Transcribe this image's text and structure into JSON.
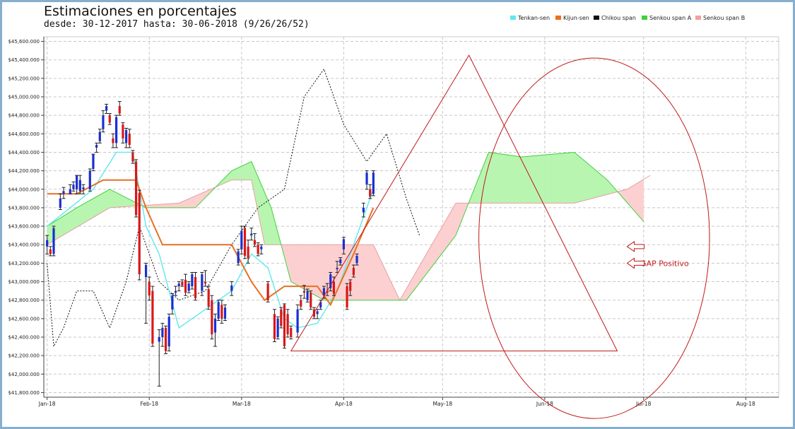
{
  "chart_data": {
    "type": "candlestick",
    "title": "Estimaciones en porcentajes",
    "subtitle": "desde: 30-12-2017 hasta: 30-06-2018 (9/26/26/52)",
    "y_unit_prefix": "$",
    "ylim": [
      41750,
      45650
    ],
    "y_ticks": [
      41800,
      42000,
      42200,
      42400,
      42600,
      42800,
      43000,
      43200,
      43400,
      43600,
      43800,
      44000,
      44200,
      44400,
      44600,
      44800,
      45000,
      45200,
      45400,
      45600
    ],
    "y_tick_labels": [
      "$41,800.000",
      "$42,000.000",
      "$42,200.000",
      "$42,400.000",
      "$42,600.000",
      "$42,800.000",
      "$43,000.000",
      "$43,200.000",
      "$43,400.000",
      "$43,600.000",
      "$43,800.000",
      "$44,000.000",
      "$44,200.000",
      "$44,400.000",
      "$44,600.000",
      "$44,800.000",
      "$45,000.000",
      "$45,200.000",
      "$45,400.000",
      "$45,600.000"
    ],
    "xlim": [
      "2017-12-31",
      "2018-08-11"
    ],
    "x_ticks": [
      {
        "date": "2018-01-01",
        "label": "Jan-18"
      },
      {
        "date": "2018-02-01",
        "label": "Feb-18"
      },
      {
        "date": "2018-03-01",
        "label": "Mar-18"
      },
      {
        "date": "2018-04-01",
        "label": "Apr-18"
      },
      {
        "date": "2018-05-01",
        "label": "May-18"
      },
      {
        "date": "2018-06-01",
        "label": "Jun-18"
      },
      {
        "date": "2018-07-01",
        "label": "Jul-18"
      },
      {
        "date": "2018-08-01",
        "label": "Aug-18"
      }
    ],
    "grid": true,
    "legend_position": "top-right",
    "legend": [
      {
        "name": "Tenkan-sen",
        "color": "#5ee8f0"
      },
      {
        "name": "Kijun-sen",
        "color": "#e87020"
      },
      {
        "name": "Chikou span",
        "color": "#111111"
      },
      {
        "name": "Senkou span A",
        "color": "#40d040"
      },
      {
        "name": "Senkou span B",
        "color": "#f2a0a0"
      }
    ],
    "candles": [
      {
        "date": "2018-01-01",
        "open": 43380,
        "high": 43500,
        "low": 43300,
        "close": 43450
      },
      {
        "date": "2018-01-02",
        "open": 43350,
        "high": 43380,
        "low": 43280,
        "close": 43300
      },
      {
        "date": "2018-01-03",
        "open": 43300,
        "high": 43600,
        "low": 43280,
        "close": 43580
      },
      {
        "date": "2018-01-05",
        "open": 43800,
        "high": 43950,
        "low": 43780,
        "close": 43900
      },
      {
        "date": "2018-01-06",
        "open": 43950,
        "high": 44020,
        "low": 43900,
        "close": 43980
      },
      {
        "date": "2018-01-08",
        "open": 43950,
        "high": 44050,
        "low": 43950,
        "close": 44000
      },
      {
        "date": "2018-01-09",
        "open": 44000,
        "high": 44080,
        "low": 43980,
        "close": 44050
      },
      {
        "date": "2018-01-10",
        "open": 44000,
        "high": 44150,
        "low": 43950,
        "close": 44150
      },
      {
        "date": "2018-01-11",
        "open": 43980,
        "high": 44150,
        "low": 43950,
        "close": 44100
      },
      {
        "date": "2018-01-12",
        "open": 44000,
        "high": 44050,
        "low": 43950,
        "close": 44020
      },
      {
        "date": "2018-01-14",
        "open": 44000,
        "high": 44220,
        "low": 43980,
        "close": 44200
      },
      {
        "date": "2018-01-15",
        "open": 44220,
        "high": 44380,
        "low": 44200,
        "close": 44380
      },
      {
        "date": "2018-01-16",
        "open": 44450,
        "high": 44500,
        "low": 44400,
        "close": 44480
      },
      {
        "date": "2018-01-17",
        "open": 44520,
        "high": 44650,
        "low": 44500,
        "close": 44620
      },
      {
        "date": "2018-01-18",
        "open": 44650,
        "high": 44850,
        "low": 44620,
        "close": 44800
      },
      {
        "date": "2018-01-19",
        "open": 44850,
        "high": 44920,
        "low": 44820,
        "close": 44900
      },
      {
        "date": "2018-01-20",
        "open": 44800,
        "high": 44820,
        "low": 44700,
        "close": 44720
      },
      {
        "date": "2018-01-21",
        "open": 44550,
        "high": 44600,
        "low": 44450,
        "close": 44500
      },
      {
        "date": "2018-01-22",
        "open": 44500,
        "high": 44800,
        "low": 44450,
        "close": 44780
      },
      {
        "date": "2018-01-23",
        "open": 44900,
        "high": 44950,
        "low": 44800,
        "close": 44820
      },
      {
        "date": "2018-01-24",
        "open": 44700,
        "high": 44720,
        "low": 44500,
        "close": 44550
      },
      {
        "date": "2018-01-25",
        "open": 44500,
        "high": 44660,
        "low": 44450,
        "close": 44640
      },
      {
        "date": "2018-01-26",
        "open": 44600,
        "high": 44650,
        "low": 44450,
        "close": 44480
      },
      {
        "date": "2018-01-27",
        "open": 44400,
        "high": 44420,
        "low": 44280,
        "close": 44300
      },
      {
        "date": "2018-01-28",
        "open": 44300,
        "high": 44320,
        "low": 43700,
        "close": 43720
      },
      {
        "date": "2018-01-29",
        "open": 43960,
        "high": 43990,
        "low": 43020,
        "close": 43080
      },
      {
        "date": "2018-01-31",
        "open": 43050,
        "high": 43200,
        "low": 42550,
        "close": 43180
      },
      {
        "date": "2018-02-01",
        "open": 43000,
        "high": 43050,
        "low": 42800,
        "close": 42850
      },
      {
        "date": "2018-02-02",
        "open": 42900,
        "high": 42950,
        "low": 42300,
        "close": 42330
      },
      {
        "date": "2018-02-04",
        "open": 42350,
        "high": 42480,
        "low": 41870,
        "close": 42400
      },
      {
        "date": "2018-02-05",
        "open": 42400,
        "high": 42550,
        "low": 42300,
        "close": 42500
      },
      {
        "date": "2018-02-06",
        "open": 42500,
        "high": 42520,
        "low": 42220,
        "close": 42250
      },
      {
        "date": "2018-02-07",
        "open": 42300,
        "high": 42650,
        "low": 42250,
        "close": 42620
      },
      {
        "date": "2018-02-08",
        "open": 42700,
        "high": 42870,
        "low": 42650,
        "close": 42850
      },
      {
        "date": "2018-02-09",
        "open": 42880,
        "high": 42950,
        "low": 42850,
        "close": 42900
      },
      {
        "date": "2018-02-10",
        "open": 42950,
        "high": 43000,
        "low": 42900,
        "close": 42980
      },
      {
        "date": "2018-02-11",
        "open": 43000,
        "high": 43020,
        "low": 42950,
        "close": 42960
      },
      {
        "date": "2018-02-12",
        "open": 43020,
        "high": 43080,
        "low": 42850,
        "close": 42880
      },
      {
        "date": "2018-02-13",
        "open": 42900,
        "high": 43000,
        "low": 42880,
        "close": 42980
      },
      {
        "date": "2018-02-14",
        "open": 42950,
        "high": 43100,
        "low": 42920,
        "close": 43080
      },
      {
        "date": "2018-02-15",
        "open": 43050,
        "high": 43100,
        "low": 42800,
        "close": 42820
      },
      {
        "date": "2018-02-17",
        "open": 42900,
        "high": 43100,
        "low": 42850,
        "close": 43080
      },
      {
        "date": "2018-02-18",
        "open": 43000,
        "high": 43120,
        "low": 42950,
        "close": 42980
      },
      {
        "date": "2018-02-19",
        "open": 42920,
        "high": 42950,
        "low": 42700,
        "close": 42730
      },
      {
        "date": "2018-02-20",
        "open": 42800,
        "high": 42850,
        "low": 42380,
        "close": 42430
      },
      {
        "date": "2018-02-21",
        "open": 42450,
        "high": 42650,
        "low": 42300,
        "close": 42600
      },
      {
        "date": "2018-02-22",
        "open": 42600,
        "high": 42800,
        "low": 42580,
        "close": 42780
      },
      {
        "date": "2018-02-23",
        "open": 42750,
        "high": 42800,
        "low": 42550,
        "close": 42600
      },
      {
        "date": "2018-02-24",
        "open": 42600,
        "high": 42750,
        "low": 42580,
        "close": 42720
      },
      {
        "date": "2018-02-26",
        "open": 42900,
        "high": 43000,
        "low": 42850,
        "close": 42960
      },
      {
        "date": "2018-02-28",
        "open": 43200,
        "high": 43350,
        "low": 43180,
        "close": 43330
      },
      {
        "date": "2018-03-01",
        "open": 43350,
        "high": 43600,
        "low": 43300,
        "close": 43550
      },
      {
        "date": "2018-03-02",
        "open": 43580,
        "high": 43600,
        "low": 43250,
        "close": 43280
      },
      {
        "date": "2018-03-03",
        "open": 43380,
        "high": 43450,
        "low": 43200,
        "close": 43250
      },
      {
        "date": "2018-03-04",
        "open": 43500,
        "high": 43580,
        "low": 43450,
        "close": 43520
      },
      {
        "date": "2018-03-05",
        "open": 43450,
        "high": 43520,
        "low": 43380,
        "close": 43400
      },
      {
        "date": "2018-03-06",
        "open": 43400,
        "high": 43420,
        "low": 43280,
        "close": 43300
      },
      {
        "date": "2018-03-07",
        "open": 43350,
        "high": 43400,
        "low": 43300,
        "close": 43380
      },
      {
        "date": "2018-03-09",
        "open": 42980,
        "high": 43000,
        "low": 42780,
        "close": 42800
      },
      {
        "date": "2018-03-11",
        "open": 42650,
        "high": 42700,
        "low": 42350,
        "close": 42380
      },
      {
        "date": "2018-03-12",
        "open": 42400,
        "high": 42620,
        "low": 42380,
        "close": 42600
      },
      {
        "date": "2018-03-13",
        "open": 42700,
        "high": 42720,
        "low": 42500,
        "close": 42520
      },
      {
        "date": "2018-03-14",
        "open": 42750,
        "high": 42760,
        "low": 42280,
        "close": 42300
      },
      {
        "date": "2018-03-15",
        "open": 42650,
        "high": 42700,
        "low": 42400,
        "close": 42430
      },
      {
        "date": "2018-03-16",
        "open": 42500,
        "high": 42520,
        "low": 42380,
        "close": 42400
      },
      {
        "date": "2018-03-18",
        "open": 42450,
        "high": 42750,
        "low": 42400,
        "close": 42700
      },
      {
        "date": "2018-03-19",
        "open": 42800,
        "high": 42850,
        "low": 42700,
        "close": 42730
      },
      {
        "date": "2018-03-20",
        "open": 42900,
        "high": 42960,
        "low": 42820,
        "close": 42880
      },
      {
        "date": "2018-03-21",
        "open": 42800,
        "high": 42920,
        "low": 42780,
        "close": 42900
      },
      {
        "date": "2018-03-22",
        "open": 42880,
        "high": 42900,
        "low": 42700,
        "close": 42720
      },
      {
        "date": "2018-03-23",
        "open": 42700,
        "high": 42720,
        "low": 42600,
        "close": 42620
      },
      {
        "date": "2018-03-24",
        "open": 42650,
        "high": 42700,
        "low": 42600,
        "close": 42680
      },
      {
        "date": "2018-03-25",
        "open": 42720,
        "high": 42800,
        "low": 42700,
        "close": 42780
      },
      {
        "date": "2018-03-26",
        "open": 42850,
        "high": 42950,
        "low": 42820,
        "close": 42930
      },
      {
        "date": "2018-03-27",
        "open": 42900,
        "high": 42980,
        "low": 42850,
        "close": 42880
      },
      {
        "date": "2018-03-28",
        "open": 42930,
        "high": 43100,
        "low": 42900,
        "close": 43080
      },
      {
        "date": "2018-03-29",
        "open": 43000,
        "high": 43050,
        "low": 42850,
        "close": 42870
      },
      {
        "date": "2018-03-30",
        "open": 43150,
        "high": 43220,
        "low": 43100,
        "close": 43150
      },
      {
        "date": "2018-03-31",
        "open": 43200,
        "high": 43260,
        "low": 43180,
        "close": 43240
      },
      {
        "date": "2018-04-01",
        "open": 43350,
        "high": 43480,
        "low": 43300,
        "close": 43460
      },
      {
        "date": "2018-04-02",
        "open": 42950,
        "high": 42980,
        "low": 42700,
        "close": 42720
      },
      {
        "date": "2018-04-03",
        "open": 43000,
        "high": 43020,
        "low": 42850,
        "close": 42900
      },
      {
        "date": "2018-04-04",
        "open": 43150,
        "high": 43180,
        "low": 43050,
        "close": 43070
      },
      {
        "date": "2018-04-05",
        "open": 43200,
        "high": 43300,
        "low": 43180,
        "close": 43280
      },
      {
        "date": "2018-04-07",
        "open": 43750,
        "high": 43850,
        "low": 43700,
        "close": 43800
      },
      {
        "date": "2018-04-08",
        "open": 44050,
        "high": 44200,
        "low": 44000,
        "close": 44180
      },
      {
        "date": "2018-04-09",
        "open": 44000,
        "high": 44050,
        "low": 43900,
        "close": 43920
      },
      {
        "date": "2018-04-10",
        "open": 43950,
        "high": 44200,
        "low": 43930,
        "close": 44180
      }
    ],
    "tenkan_sen": [
      [
        "2018-01-01",
        43600
      ],
      [
        "2018-01-08",
        43800
      ],
      [
        "2018-01-15",
        44000
      ],
      [
        "2018-01-22",
        44400
      ],
      [
        "2018-01-27",
        44400
      ],
      [
        "2018-01-31",
        43600
      ],
      [
        "2018-02-04",
        43300
      ],
      [
        "2018-02-10",
        42500
      ],
      [
        "2018-02-18",
        42700
      ],
      [
        "2018-02-26",
        42900
      ],
      [
        "2018-03-04",
        43300
      ],
      [
        "2018-03-09",
        43150
      ],
      [
        "2018-03-14",
        42600
      ],
      [
        "2018-03-18",
        42500
      ],
      [
        "2018-03-24",
        42550
      ],
      [
        "2018-03-30",
        42900
      ],
      [
        "2018-04-05",
        43500
      ],
      [
        "2018-04-10",
        44000
      ]
    ],
    "kijun_sen": [
      [
        "2018-01-01",
        43950
      ],
      [
        "2018-01-10",
        43950
      ],
      [
        "2018-01-18",
        44100
      ],
      [
        "2018-01-28",
        44100
      ],
      [
        "2018-01-31",
        43800
      ],
      [
        "2018-02-05",
        43400
      ],
      [
        "2018-02-26",
        43400
      ],
      [
        "2018-03-04",
        43000
      ],
      [
        "2018-03-08",
        42800
      ],
      [
        "2018-03-14",
        42950
      ],
      [
        "2018-03-24",
        42950
      ],
      [
        "2018-03-28",
        42750
      ],
      [
        "2018-04-04",
        43300
      ],
      [
        "2018-04-10",
        43800
      ]
    ],
    "chikou_span": [
      [
        "2018-01-01",
        43200
      ],
      [
        "2018-01-03",
        42300
      ],
      [
        "2018-01-06",
        42500
      ],
      [
        "2018-01-10",
        42900
      ],
      [
        "2018-01-15",
        42900
      ],
      [
        "2018-01-20",
        42500
      ],
      [
        "2018-01-25",
        43000
      ],
      [
        "2018-01-29",
        43600
      ],
      [
        "2018-02-04",
        43000
      ],
      [
        "2018-02-10",
        42800
      ],
      [
        "2018-02-18",
        42900
      ],
      [
        "2018-02-26",
        43400
      ],
      [
        "2018-03-06",
        43800
      ],
      [
        "2018-03-14",
        44000
      ],
      [
        "2018-03-20",
        45000
      ],
      [
        "2018-03-26",
        45300
      ],
      [
        "2018-04-01",
        44700
      ],
      [
        "2018-04-08",
        44300
      ],
      [
        "2018-04-14",
        44600
      ],
      [
        "2018-04-20",
        43900
      ],
      [
        "2018-04-24",
        43500
      ]
    ],
    "cloud_span_a": [
      [
        "2018-01-01",
        43600
      ],
      [
        "2018-01-10",
        43800
      ],
      [
        "2018-01-20",
        44000
      ],
      [
        "2018-01-31",
        43800
      ],
      [
        "2018-02-15",
        43800
      ],
      [
        "2018-02-26",
        44200
      ],
      [
        "2018-03-04",
        44300
      ],
      [
        "2018-03-10",
        43800
      ],
      [
        "2018-03-16",
        43000
      ],
      [
        "2018-03-26",
        42800
      ],
      [
        "2018-04-05",
        42800
      ],
      [
        "2018-04-20",
        42800
      ],
      [
        "2018-05-05",
        43500
      ],
      [
        "2018-05-15",
        44400
      ],
      [
        "2018-05-25",
        44350
      ],
      [
        "2018-06-10",
        44400
      ],
      [
        "2018-06-20",
        44100
      ],
      [
        "2018-07-01",
        43650
      ]
    ],
    "cloud_span_b": [
      [
        "2018-01-01",
        43400
      ],
      [
        "2018-01-20",
        43800
      ],
      [
        "2018-02-10",
        43850
      ],
      [
        "2018-02-26",
        44100
      ],
      [
        "2018-03-04",
        44100
      ],
      [
        "2018-03-08",
        43400
      ],
      [
        "2018-03-28",
        43400
      ],
      [
        "2018-04-10",
        43400
      ],
      [
        "2018-04-18",
        42800
      ],
      [
        "2018-05-05",
        43850
      ],
      [
        "2018-06-10",
        43850
      ],
      [
        "2018-06-26",
        44000
      ],
      [
        "2018-07-03",
        44150
      ]
    ],
    "annotations": [
      {
        "type": "text",
        "text": "GAP Positivo",
        "date": "2018-06-30",
        "value": 43200
      },
      {
        "type": "arrow",
        "direction": "left",
        "date": "2018-06-26",
        "value": 43380
      },
      {
        "type": "arrow",
        "direction": "left",
        "date": "2018-06-26",
        "value": 43200
      },
      {
        "type": "triangle",
        "points": [
          [
            "2018-03-16",
            42250
          ],
          [
            "2018-05-09",
            45450
          ],
          [
            "2018-06-23",
            42250
          ]
        ]
      },
      {
        "type": "ellipse",
        "center": [
          "2018-06-16",
          43470
        ],
        "rx_days": 35,
        "ry_value": 3900
      }
    ]
  }
}
